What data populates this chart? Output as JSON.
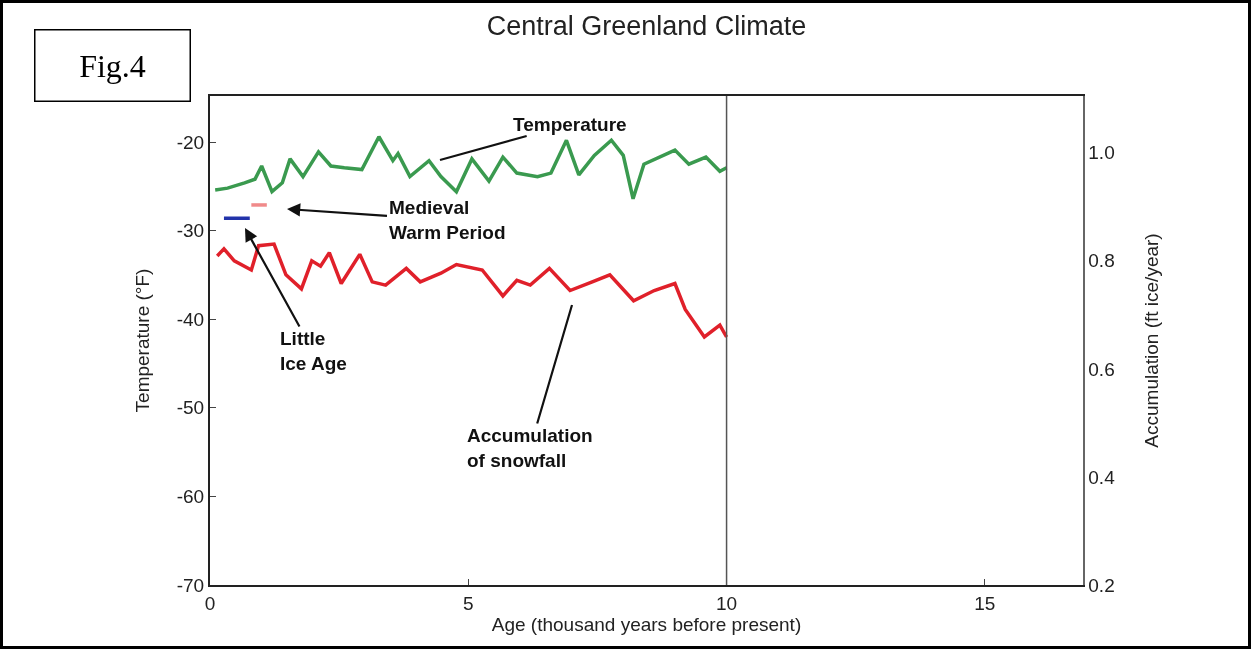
{
  "chart_data": {
    "type": "line",
    "title": "Central Greenland Climate",
    "xlabel": "Age (thousand years before present)",
    "ylabel": "Temperature (°F)",
    "y2label": "Accumulation (ft ice/year)",
    "xlim": [
      0,
      16.9
    ],
    "xticks": [
      0,
      5,
      10,
      15
    ],
    "ylim": [
      -70,
      -14.8
    ],
    "yticks": [
      -70,
      -60,
      -50,
      -40,
      -30,
      -20
    ],
    "y2lim": [
      0.2,
      1.105
    ],
    "y2ticks": [
      0.2,
      0.4,
      0.6,
      0.8,
      {
        "value": 1,
        "label": "1.0"
      }
    ],
    "grid": false,
    "line_style": "solid",
    "marker": "none",
    "series": [
      {
        "color": "#3a9a4f",
        "x": [
          0.1,
          0.34,
          0.67,
          0.87,
          1.0,
          1.2,
          1.4,
          1.55,
          1.8,
          2.1,
          2.34,
          2.6,
          2.94,
          3.27,
          3.54,
          3.64,
          3.87,
          4.24,
          4.47,
          4.77,
          5.07,
          5.4,
          5.67,
          5.94,
          6.34,
          6.6,
          6.9,
          7.14,
          7.44,
          7.77,
          8.0,
          8.19,
          8.4,
          9.0,
          9.27,
          9.6,
          9.87,
          10.0
        ],
        "values": [
          -25.4,
          -25.2,
          -24.6,
          -24.2,
          -22.7,
          -25.6,
          -24.6,
          -21.9,
          -23.9,
          -21.1,
          -22.7,
          -22.9,
          -23.1,
          -19.4,
          -22.1,
          -21.3,
          -23.9,
          -22.1,
          -23.9,
          -25.6,
          -21.9,
          -24.4,
          -21.7,
          -23.5,
          -23.9,
          -23.5,
          -19.8,
          -23.7,
          -21.5,
          -19.8,
          -21.5,
          -26.4,
          -22.5,
          -20.9,
          -22.5,
          -21.7,
          -23.3,
          -22.9
        ]
      },
      {
        "color": "#e0202a",
        "axis": "y2",
        "x": [
          0.14,
          0.27,
          0.47,
          0.8,
          0.94,
          1.24,
          1.47,
          1.77,
          1.97,
          2.14,
          2.31,
          2.54,
          2.9,
          3.14,
          3.4,
          3.8,
          4.07,
          4.47,
          4.77,
          5.27,
          5.67,
          5.94,
          6.2,
          6.57,
          6.97,
          7.4,
          7.74,
          8.2,
          8.6,
          9.0,
          9.2,
          9.57,
          9.87,
          10.0
        ],
        "values": [
          0.809,
          0.822,
          0.8,
          0.783,
          0.828,
          0.831,
          0.774,
          0.748,
          0.8,
          0.79,
          0.815,
          0.758,
          0.812,
          0.761,
          0.755,
          0.786,
          0.761,
          0.777,
          0.793,
          0.783,
          0.735,
          0.764,
          0.755,
          0.786,
          0.745,
          0.761,
          0.774,
          0.726,
          0.745,
          0.758,
          0.71,
          0.659,
          0.681,
          0.659
        ]
      },
      {
        "color": "#2233aa",
        "x": [
          0.27,
          0.77
        ],
        "values": [
          -28.6,
          -28.6
        ]
      },
      {
        "color": "#f08a8a",
        "x": [
          0.8,
          1.1
        ],
        "values": [
          -27.1,
          -27.1
        ]
      }
    ],
    "ref_lines": [
      {
        "axis": "x",
        "value": 10,
        "color": "#555555"
      }
    ],
    "annotations": [
      "Fig.4",
      "Temperature",
      "Medieval\nWarm Period",
      "Little\nIce Age",
      "Accumulation\nof snowfall"
    ]
  }
}
